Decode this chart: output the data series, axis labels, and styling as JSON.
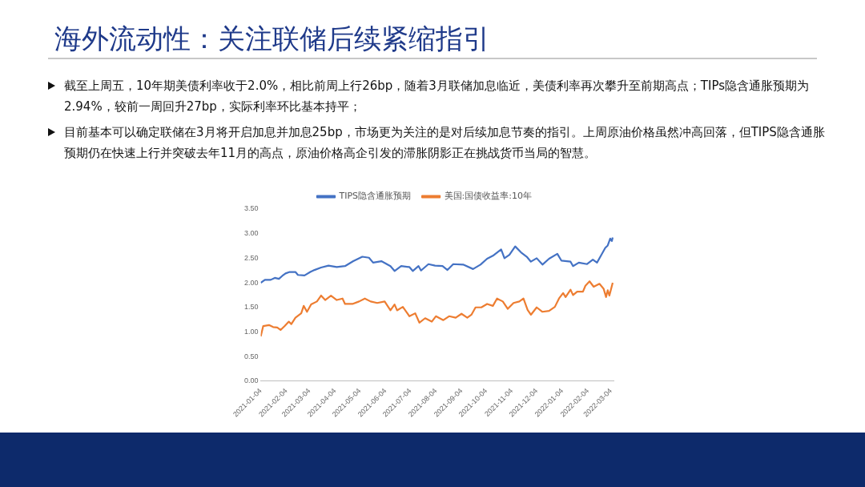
{
  "chart_data": {
    "type": "line",
    "title": "海外流动性：关注联储后续紧缩指引",
    "annotations": [
      "截至上周五，10年期美债利率收于2.0%，相比前周上行26bp，随着3月联储加息临近，美债利率再次攀升至前期高点；TIPs隐含通胀预期为2.94%，较前一周回升27bp，实际利率环比基本持平；",
      "目前基本可以确定联储在3月将开启加息并加息25bp，市场更为关注的是对后续加息节奏的指引。上周原油价格虽然冲高回落，但TIPS隐含通胀预期仍在快速上行并突破去年11月的高点，原油价格高企引发的滞胀阴影正在挑战货币当局的智慧。"
    ],
    "series": [
      {
        "name": "TIPS隐含通胀预期",
        "color": "#4472c4",
        "x": [
          "2021-01-04",
          "2021-01-09",
          "2021-01-16",
          "2021-01-21",
          "2021-01-26",
          "2021-01-30",
          "2021-02-03",
          "2021-02-08",
          "2021-02-15",
          "2021-02-18",
          "2021-02-26",
          "2021-03-05",
          "2021-03-10",
          "2021-03-18",
          "2021-03-27",
          "2021-04-06",
          "2021-04-16",
          "2021-04-26",
          "2021-05-07",
          "2021-05-15",
          "2021-05-20",
          "2021-05-30",
          "2021-06-10",
          "2021-06-15",
          "2021-06-23",
          "2021-07-03",
          "2021-07-07",
          "2021-07-14",
          "2021-07-17",
          "2021-07-26",
          "2021-08-03",
          "2021-08-12",
          "2021-08-18",
          "2021-08-25",
          "2021-09-06",
          "2021-09-18",
          "2021-09-27",
          "2021-10-05",
          "2021-10-12",
          "2021-10-22",
          "2021-10-26",
          "2021-11-01",
          "2021-11-08",
          "2021-11-15",
          "2021-11-22",
          "2021-11-27",
          "2021-12-04",
          "2021-12-11",
          "2021-12-19",
          "2021-12-29",
          "2022-01-03",
          "2022-01-14",
          "2022-01-17",
          "2022-01-24",
          "2022-02-03",
          "2022-02-10",
          "2022-02-15",
          "2022-02-20",
          "2022-02-25",
          "2022-02-28",
          "2022-03-03",
          "2022-03-05",
          "2022-03-06"
        ],
        "values": [
          2.0,
          2.06,
          2.06,
          2.1,
          2.08,
          2.14,
          2.19,
          2.22,
          2.22,
          2.16,
          2.15,
          2.22,
          2.26,
          2.31,
          2.35,
          2.32,
          2.34,
          2.44,
          2.53,
          2.51,
          2.41,
          2.44,
          2.34,
          2.24,
          2.34,
          2.32,
          2.24,
          2.34,
          2.25,
          2.38,
          2.35,
          2.34,
          2.26,
          2.38,
          2.37,
          2.28,
          2.37,
          2.49,
          2.55,
          2.68,
          2.5,
          2.57,
          2.74,
          2.62,
          2.53,
          2.43,
          2.5,
          2.37,
          2.49,
          2.59,
          2.45,
          2.43,
          2.34,
          2.41,
          2.38,
          2.47,
          2.41,
          2.56,
          2.71,
          2.76,
          2.9,
          2.85,
          2.92
        ]
      },
      {
        "name": "美国:国债收益率:10年",
        "color": "#ed7d31",
        "x": [
          "2021-01-04",
          "2021-01-07",
          "2021-01-14",
          "2021-01-19",
          "2021-01-24",
          "2021-01-28",
          "2021-02-02",
          "2021-02-07",
          "2021-02-10",
          "2021-02-15",
          "2021-02-22",
          "2021-02-25",
          "2021-03-01",
          "2021-03-06",
          "2021-03-13",
          "2021-03-18",
          "2021-03-23",
          "2021-03-30",
          "2021-04-06",
          "2021-04-13",
          "2021-04-16",
          "2021-04-25",
          "2021-05-03",
          "2021-05-10",
          "2021-05-17",
          "2021-05-25",
          "2021-06-03",
          "2021-06-10",
          "2021-06-15",
          "2021-06-18",
          "2021-06-25",
          "2021-07-03",
          "2021-07-10",
          "2021-07-15",
          "2021-07-22",
          "2021-07-30",
          "2021-08-04",
          "2021-08-13",
          "2021-08-20",
          "2021-08-28",
          "2021-09-04",
          "2021-09-11",
          "2021-09-16",
          "2021-09-21",
          "2021-09-28",
          "2021-10-05",
          "2021-10-12",
          "2021-10-17",
          "2021-10-24",
          "2021-10-30",
          "2021-11-06",
          "2021-11-13",
          "2021-11-18",
          "2021-11-23",
          "2021-11-27",
          "2021-12-04",
          "2021-12-11",
          "2021-12-19",
          "2021-12-26",
          "2021-12-31",
          "2022-01-05",
          "2022-01-08",
          "2022-01-14",
          "2022-01-17",
          "2022-01-22",
          "2022-01-29",
          "2022-02-01",
          "2022-02-06",
          "2022-02-11",
          "2022-02-18",
          "2022-02-23",
          "2022-02-26",
          "2022-02-28",
          "2022-03-02",
          "2022-03-06"
        ],
        "values": [
          0.91,
          1.12,
          1.14,
          1.1,
          1.09,
          1.04,
          1.12,
          1.21,
          1.16,
          1.29,
          1.38,
          1.53,
          1.41,
          1.56,
          1.62,
          1.74,
          1.65,
          1.74,
          1.65,
          1.68,
          1.57,
          1.57,
          1.62,
          1.68,
          1.62,
          1.59,
          1.62,
          1.44,
          1.56,
          1.44,
          1.51,
          1.32,
          1.38,
          1.19,
          1.28,
          1.21,
          1.32,
          1.24,
          1.32,
          1.29,
          1.37,
          1.29,
          1.35,
          1.5,
          1.5,
          1.57,
          1.53,
          1.68,
          1.62,
          1.47,
          1.59,
          1.62,
          1.68,
          1.45,
          1.35,
          1.5,
          1.41,
          1.43,
          1.51,
          1.68,
          1.79,
          1.71,
          1.86,
          1.75,
          1.82,
          1.82,
          1.94,
          2.03,
          1.92,
          1.98,
          1.88,
          1.71,
          1.85,
          1.74,
          2.0
        ]
      }
    ],
    "xlim": [
      "2021-01-04",
      "2022-03-07"
    ],
    "xticks": [
      "2021-01-04",
      "2021-02-04",
      "2021-03-04",
      "2021-04-04",
      "2021-05-04",
      "2021-06-04",
      "2021-07-04",
      "2021-08-04",
      "2021-09-04",
      "2021-10-04",
      "2021-11-04",
      "2021-12-04",
      "2022-01-04",
      "2022-02-04",
      "2022-03-04"
    ],
    "ylim": [
      0,
      3.5
    ],
    "yticks": [
      {
        "value": 0,
        "label": "0.00"
      },
      {
        "value": 0.5,
        "label": "0.50"
      },
      {
        "value": 1,
        "label": "1.00"
      },
      {
        "value": 1.5,
        "label": "1.50"
      },
      {
        "value": 2,
        "label": "2.00"
      },
      {
        "value": 2.5,
        "label": "2.50"
      },
      {
        "value": 3,
        "label": "3.00"
      },
      {
        "value": 3.5,
        "label": "3.50"
      }
    ],
    "legend": "top",
    "grid": false,
    "marker": "none",
    "line_style": "solid"
  }
}
